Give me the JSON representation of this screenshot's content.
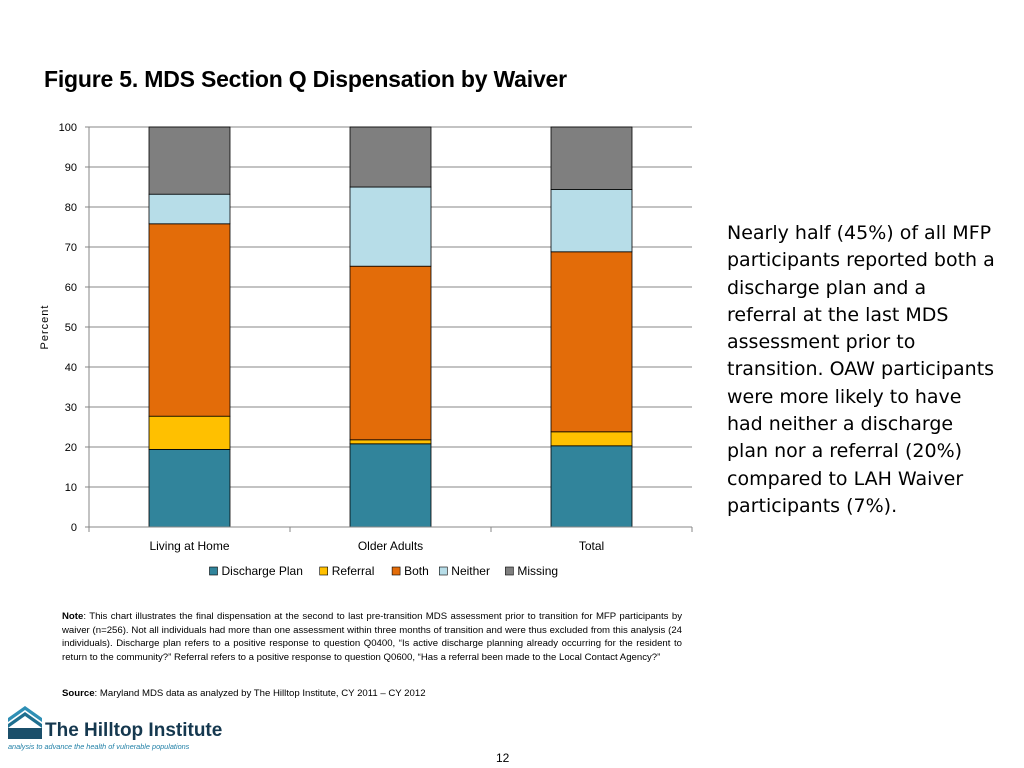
{
  "title": "Figure 5. MDS Section Q Dispensation by Waiver",
  "chart_data": {
    "type": "bar",
    "stacked": true,
    "categories": [
      "Living at Home",
      "Older Adults",
      "Total"
    ],
    "series": [
      {
        "name": "Discharge Plan",
        "color": "#31849b",
        "values": [
          19.4,
          20.8,
          20.3
        ]
      },
      {
        "name": "Referral",
        "color": "#ffc000",
        "values": [
          8.3,
          1.0,
          3.5
        ]
      },
      {
        "name": "Both",
        "color": "#e36c09",
        "values": [
          48.1,
          43.4,
          45.0
        ]
      },
      {
        "name": "Neither",
        "color": "#b7dde8",
        "values": [
          7.4,
          19.8,
          15.6
        ]
      },
      {
        "name": "Missing",
        "color": "#7f7f7f",
        "values": [
          16.8,
          15.0,
          15.6
        ]
      }
    ],
    "ylabel": "Percent",
    "xlabel": "",
    "ylim": [
      0,
      100
    ],
    "yticks": [
      0,
      10,
      20,
      30,
      40,
      50,
      60,
      70,
      80,
      90,
      100
    ],
    "grid": true,
    "legend": "bottom"
  },
  "side_text": "Nearly half (45%) of all MFP participants reported both a discharge plan and a referral at the last MDS assessment prior to transition. OAW participants were more likely to have had neither a discharge plan nor a referral (20%) compared to LAH Waiver participants (7%).",
  "note": {
    "label": "Note",
    "text": ": This chart illustrates the final dispensation at the second to last pre-transition MDS assessment prior to transition for MFP participants by waiver (n=256).  Not all individuals had more than one assessment within three months of transition and were thus excluded from this analysis (24 individuals).  Discharge plan refers to a positive response to question Q0400, “Is  active discharge planning already occurring for the resident to return to the community?”  Referral refers to a positive response to question Q0600, “Has a referral been made to the Local Contact Agency?”"
  },
  "source": {
    "label": "Source",
    "text": ": Maryland MDS data as analyzed by The Hilltop Institute, CY 2011 – CY 2012"
  },
  "logo": {
    "name": "The Hilltop Institute",
    "tagline": "analysis to advance the health of vulnerable populations"
  },
  "page_number": "12"
}
